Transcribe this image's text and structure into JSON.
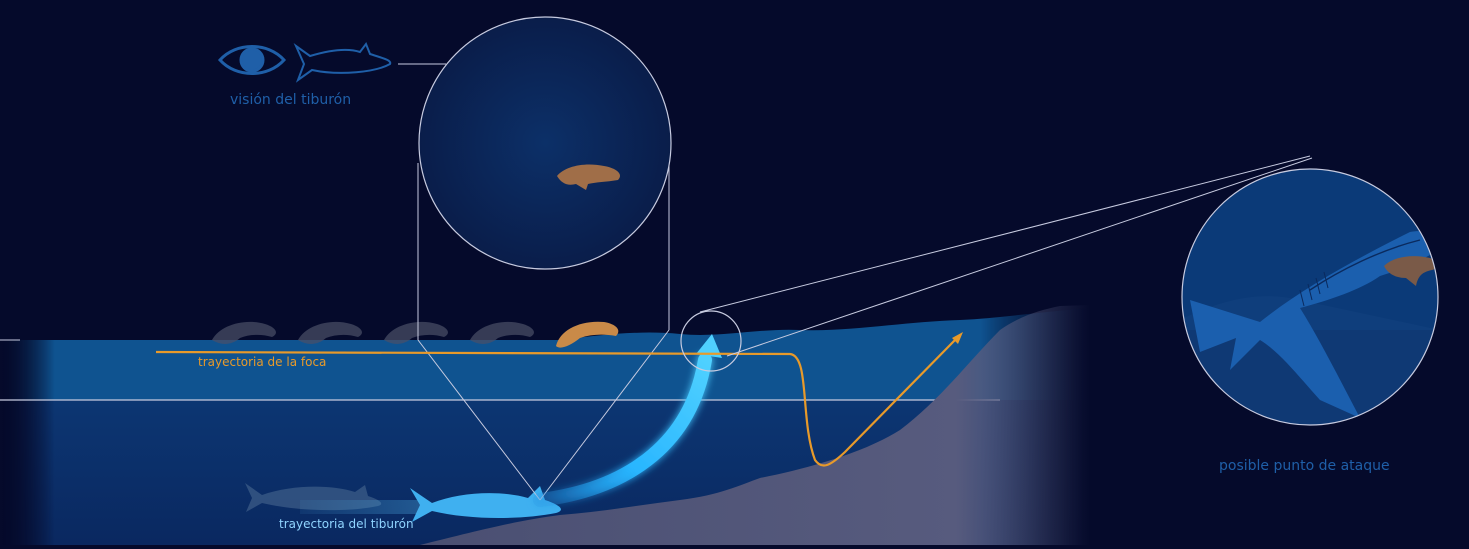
{
  "labels": {
    "shark_vision": "visión del tiburón",
    "seal_path": "trayectoria de la foca",
    "shark_path": "trayectoria del tiburón",
    "attack_point": "posible punto de ataque"
  },
  "icons": {
    "vision": "eye-icon",
    "shark": "shark-outline-icon"
  },
  "colors": {
    "background": "#050a2b",
    "water_surface": "#0f4f8c",
    "deep_water": "#0a2a5e",
    "seafloor": "#55597a",
    "seal": "#c98a48",
    "seal_path": "#e89a2a",
    "shark_path": "#29b6ff",
    "label_blue": "#1f5fa8",
    "guide_lines": "#c7cbe0"
  }
}
